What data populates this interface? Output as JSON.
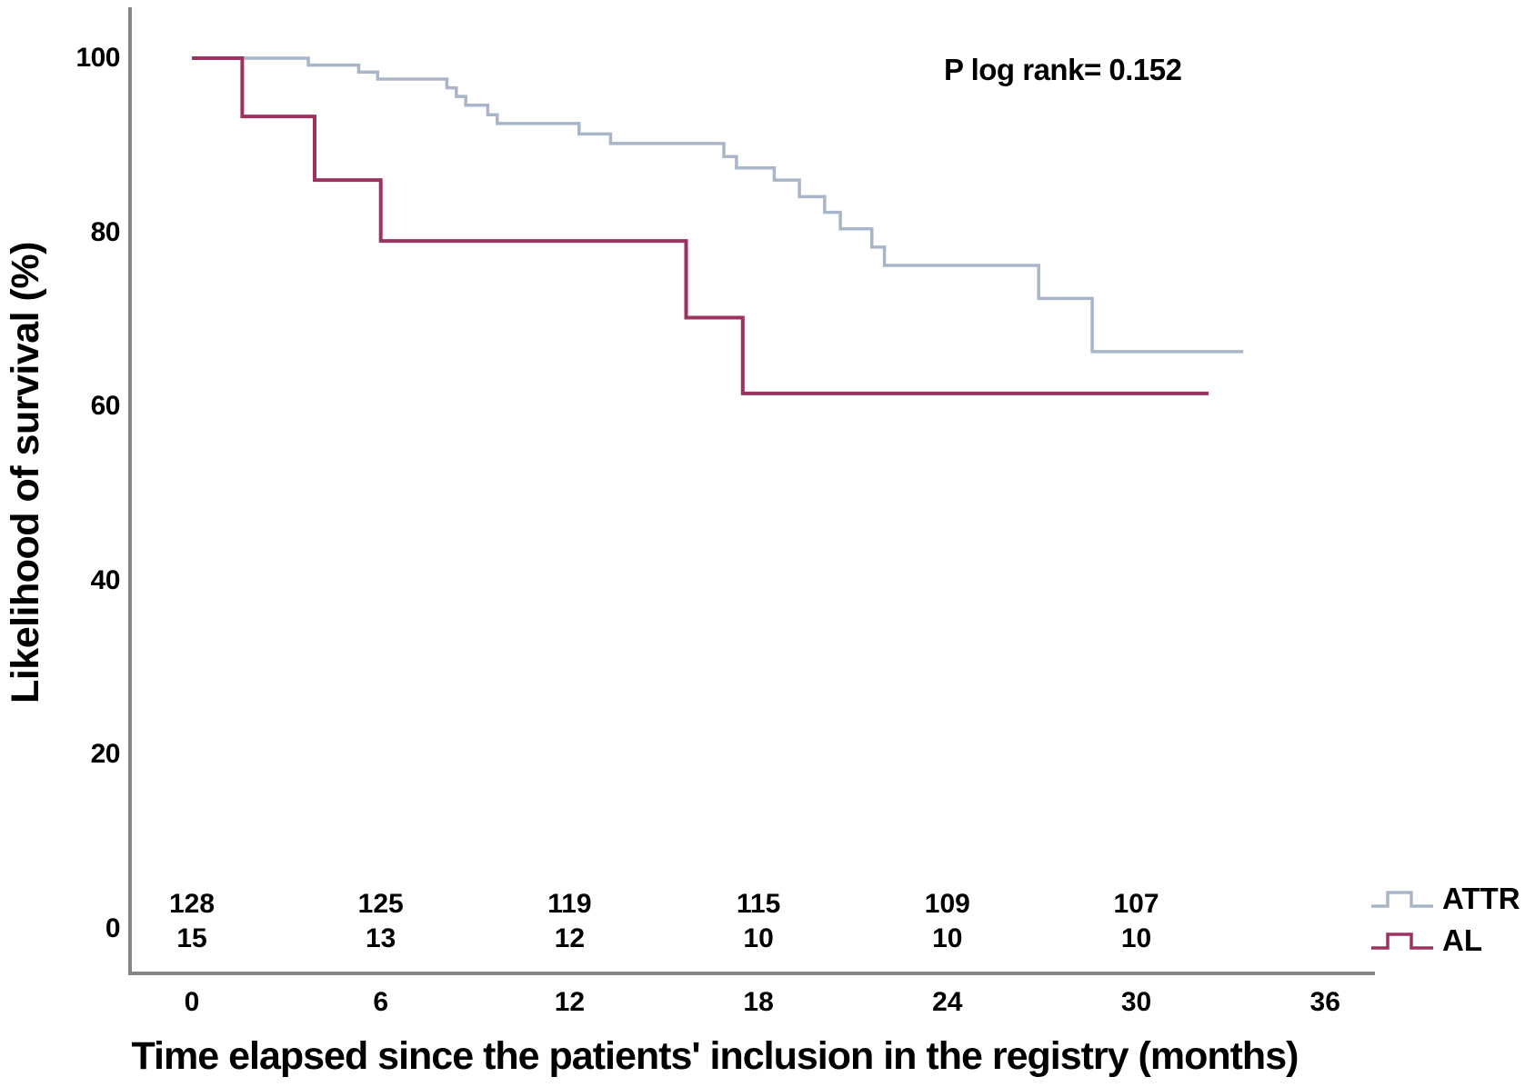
{
  "chart_data": {
    "type": "line",
    "subtype": "kaplan-meier-step",
    "annotation": "P log rank= 0.152",
    "xlabel": "Time elapsed since the patients' inclusion in the registry (months)",
    "ylabel": "Likelihood of survival (%)",
    "xlim": [
      0,
      36
    ],
    "ylim": [
      0,
      100
    ],
    "x_ticks": [
      0,
      6,
      12,
      18,
      24,
      30,
      36
    ],
    "y_ticks": [
      0,
      20,
      40,
      60,
      80,
      100
    ],
    "grid": false,
    "legend_position": "bottom-right",
    "series": [
      {
        "name": "ATTR",
        "color": "#a9b5c8",
        "start": [
          0,
          100
        ],
        "steps": [
          [
            3.7,
            99.2
          ],
          [
            5.3,
            98.4
          ],
          [
            5.9,
            97.6
          ],
          [
            8.1,
            96.6
          ],
          [
            8.4,
            95.6
          ],
          [
            8.7,
            94.6
          ],
          [
            9.4,
            93.5
          ],
          [
            9.7,
            92.5
          ],
          [
            12.3,
            91.3
          ],
          [
            13.3,
            90.2
          ],
          [
            16.9,
            88.7
          ],
          [
            17.3,
            87.4
          ],
          [
            18.5,
            86.0
          ],
          [
            19.3,
            84.1
          ],
          [
            20.1,
            82.3
          ],
          [
            20.6,
            80.4
          ],
          [
            21.6,
            78.3
          ],
          [
            22.0,
            76.2
          ],
          [
            26.9,
            72.4
          ],
          [
            28.6,
            66.3
          ]
        ],
        "end_month": 33.4
      },
      {
        "name": "AL",
        "color": "#9c3260",
        "start": [
          0,
          100
        ],
        "steps": [
          [
            1.6,
            93.3
          ],
          [
            3.9,
            86.0
          ],
          [
            6.0,
            79.0
          ],
          [
            15.7,
            70.2
          ],
          [
            17.5,
            61.5
          ]
        ],
        "end_month": 32.3
      }
    ],
    "numbers_at_risk": {
      "times": [
        0,
        6,
        12,
        18,
        24,
        30
      ],
      "rows": [
        {
          "series": "ATTR",
          "counts": [
            128,
            125,
            119,
            115,
            109,
            107
          ]
        },
        {
          "series": "AL",
          "counts": [
            15,
            13,
            12,
            10,
            10,
            10
          ]
        }
      ]
    }
  },
  "colors": {
    "attr_line": "#a9b5c8",
    "al_line": "#9c3260",
    "axis": "#858585",
    "text": "#000000",
    "background": "#ffffff"
  }
}
